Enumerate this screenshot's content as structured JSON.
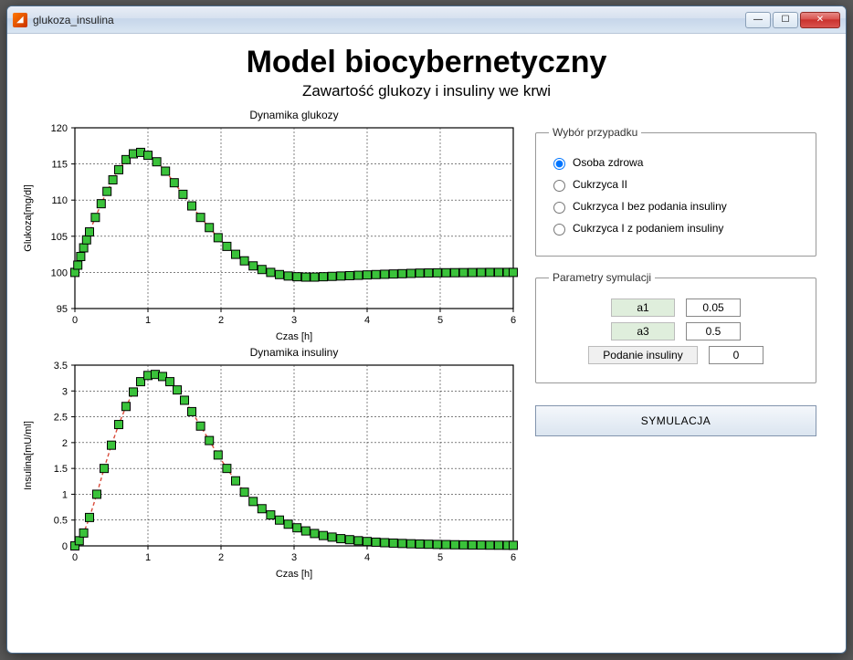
{
  "window": {
    "title": "glukoza_insulina"
  },
  "heading": {
    "title": "Model biocybernetyczny",
    "subtitle": "Zawartość glukozy i insuliny we krwi"
  },
  "case_panel": {
    "legend": "Wybór przypadku",
    "options": [
      {
        "label": "Osoba zdrowa",
        "selected": true
      },
      {
        "label": "Cukrzyca II",
        "selected": false
      },
      {
        "label": "Cukrzyca I bez podania insuliny",
        "selected": false
      },
      {
        "label": "Cukrzyca I z podaniem insuliny",
        "selected": false
      }
    ]
  },
  "params_panel": {
    "legend": "Parametry symulacji",
    "rows": [
      {
        "label": "a1",
        "value": "0.05",
        "wide": false
      },
      {
        "label": "a3",
        "value": "0.5",
        "wide": false
      },
      {
        "label": "Podanie insuliny",
        "value": "0",
        "wide": true
      }
    ]
  },
  "sim_button": {
    "label": "SYMULACJA"
  },
  "glucose_chart": {
    "type": "line+marker",
    "title": "Dynamika glukozy",
    "xlabel": "Czas [h]",
    "ylabel": "Glukoza[mg/dl]",
    "xlim": [
      0,
      6
    ],
    "xtick_step": 1,
    "ylim": [
      95,
      120
    ],
    "ytick_step": 5,
    "line_color": "#d94a3a",
    "line_dash": "4,3",
    "marker_fill": "#3ac23a",
    "marker_edge": "#000000",
    "marker_size": 9,
    "grid_color": "#333333",
    "grid_dash": "2,2",
    "background_color": "#ffffff",
    "label_fontsize": 11,
    "title_fontsize": 12,
    "x": [
      0,
      0.04,
      0.08,
      0.12,
      0.16,
      0.2,
      0.28,
      0.36,
      0.44,
      0.52,
      0.6,
      0.7,
      0.8,
      0.9,
      1.0,
      1.12,
      1.24,
      1.36,
      1.48,
      1.6,
      1.72,
      1.84,
      1.96,
      2.08,
      2.2,
      2.32,
      2.44,
      2.56,
      2.68,
      2.8,
      2.92,
      3.04,
      3.16,
      3.28,
      3.4,
      3.52,
      3.64,
      3.76,
      3.88,
      4.0,
      4.12,
      4.24,
      4.36,
      4.48,
      4.6,
      4.72,
      4.84,
      4.96,
      5.08,
      5.2,
      5.32,
      5.44,
      5.56,
      5.68,
      5.8,
      5.92,
      6.0
    ],
    "y": [
      100,
      101,
      102.2,
      103.4,
      104.5,
      105.6,
      107.6,
      109.5,
      111.2,
      112.8,
      114.2,
      115.6,
      116.4,
      116.6,
      116.2,
      115.3,
      114.0,
      112.4,
      110.8,
      109.2,
      107.6,
      106.2,
      104.8,
      103.6,
      102.5,
      101.6,
      100.9,
      100.4,
      100.0,
      99.7,
      99.5,
      99.4,
      99.35,
      99.35,
      99.4,
      99.45,
      99.5,
      99.55,
      99.6,
      99.65,
      99.7,
      99.74,
      99.78,
      99.82,
      99.86,
      99.9,
      99.92,
      99.94,
      99.95,
      99.96,
      99.97,
      99.98,
      99.99,
      100.0,
      100.0,
      100.0,
      100.0
    ]
  },
  "insulin_chart": {
    "type": "line+marker",
    "title": "Dynamika insuliny",
    "xlabel": "Czas [h]",
    "ylabel": "Insulina[mU/ml]",
    "xlim": [
      0,
      6
    ],
    "xtick_step": 1,
    "ylim": [
      0,
      3.5
    ],
    "ytick_step": 0.5,
    "line_color": "#d94a3a",
    "line_dash": "4,3",
    "marker_fill": "#3ac23a",
    "marker_edge": "#000000",
    "marker_size": 9,
    "grid_color": "#333333",
    "grid_dash": "2,2",
    "background_color": "#ffffff",
    "label_fontsize": 11,
    "title_fontsize": 12,
    "x": [
      0,
      0.06,
      0.12,
      0.2,
      0.3,
      0.4,
      0.5,
      0.6,
      0.7,
      0.8,
      0.9,
      1.0,
      1.1,
      1.2,
      1.3,
      1.4,
      1.5,
      1.6,
      1.72,
      1.84,
      1.96,
      2.08,
      2.2,
      2.32,
      2.44,
      2.56,
      2.68,
      2.8,
      2.92,
      3.04,
      3.16,
      3.28,
      3.4,
      3.52,
      3.64,
      3.76,
      3.88,
      4.0,
      4.12,
      4.24,
      4.36,
      4.48,
      4.6,
      4.72,
      4.84,
      4.96,
      5.08,
      5.2,
      5.32,
      5.44,
      5.56,
      5.68,
      5.8,
      5.92,
      6.0
    ],
    "y": [
      0,
      0.1,
      0.25,
      0.55,
      1.0,
      1.5,
      1.95,
      2.35,
      2.7,
      2.98,
      3.18,
      3.3,
      3.32,
      3.28,
      3.18,
      3.02,
      2.82,
      2.6,
      2.32,
      2.04,
      1.76,
      1.5,
      1.26,
      1.04,
      0.86,
      0.72,
      0.6,
      0.5,
      0.42,
      0.35,
      0.29,
      0.24,
      0.2,
      0.17,
      0.14,
      0.12,
      0.1,
      0.085,
      0.072,
      0.062,
      0.054,
      0.047,
      0.041,
      0.036,
      0.032,
      0.028,
      0.025,
      0.022,
      0.02,
      0.018,
      0.016,
      0.014,
      0.013,
      0.012,
      0.011
    ]
  }
}
